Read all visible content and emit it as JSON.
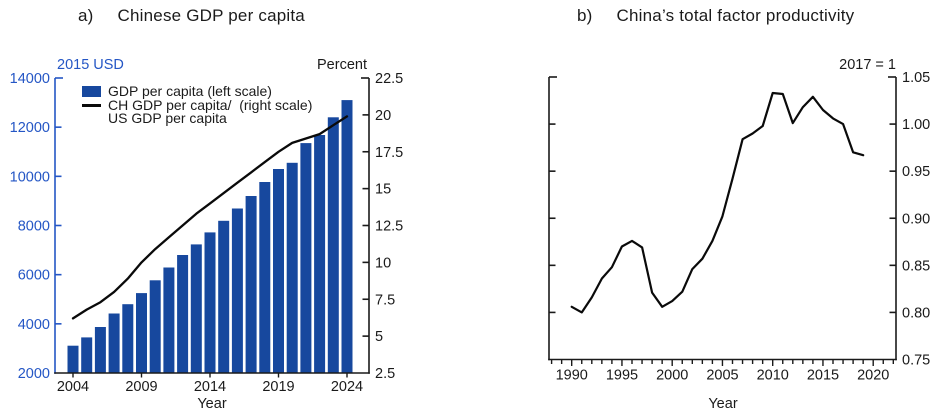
{
  "colors": {
    "bar_blue": "#17489E",
    "axis_blue": "#2456C5",
    "line_black": "#0a0a0a",
    "axis_black": "#1a1a1a",
    "title_color": "#1b1b1b"
  },
  "panels": [
    {
      "label": "a)",
      "title": "Chinese GDP per capita",
      "left_axis_title": "2015 USD",
      "right_axis_title": "Percent",
      "x_axis_title": "Year",
      "legend": [
        {
          "swatch": "bar",
          "label": "GDP per capita (left scale)"
        },
        {
          "swatch": "line",
          "label_line1": "CH GDP per capita/  (right scale)",
          "label_line2": "US GDP per capita"
        }
      ]
    },
    {
      "label": "b)",
      "title": "China’s total factor productivity",
      "right_axis_title": "2017 = 1",
      "x_axis_title": "Year"
    }
  ],
  "chart_data": [
    {
      "type": "bar",
      "title": "Chinese GDP per capita",
      "xlabel": "Year",
      "years": [
        2004,
        2005,
        2006,
        2007,
        2008,
        2009,
        2010,
        2011,
        2012,
        2013,
        2014,
        2015,
        2016,
        2017,
        2018,
        2019,
        2020,
        2021,
        2022,
        2023,
        2024
      ],
      "series": [
        {
          "name": "GDP per capita (left scale)",
          "type": "bar",
          "axis": "left",
          "unit": "2015 USD",
          "values": [
            3110,
            3450,
            3870,
            4420,
            4800,
            5250,
            5770,
            6290,
            6800,
            7230,
            7720,
            8190,
            8690,
            9200,
            9770,
            10300,
            10550,
            11350,
            11680,
            12400,
            13100
          ]
        },
        {
          "name": "CH GDP per capita / US GDP per capita (right scale)",
          "type": "line",
          "axis": "right",
          "unit": "Percent",
          "values": [
            6.2,
            6.8,
            7.3,
            8.0,
            8.9,
            10.0,
            10.9,
            11.7,
            12.5,
            13.3,
            14.0,
            14.7,
            15.4,
            16.1,
            16.8,
            17.5,
            18.1,
            18.4,
            18.7,
            19.3,
            19.9
          ]
        }
      ],
      "left_ylim": [
        2000,
        14000
      ],
      "left_ticks": [
        14000,
        12000,
        10000,
        8000,
        6000,
        4000,
        2000
      ],
      "right_ylim": [
        2.5,
        22.5
      ],
      "right_ticks": [
        "22.5",
        "20",
        "17.5",
        "15",
        "12.5",
        "10",
        "7.5",
        "5",
        "2.5"
      ],
      "x_ticks": [
        2004,
        2009,
        2014,
        2019,
        2024
      ],
      "legend_position": "top-left",
      "grid": false
    },
    {
      "type": "line",
      "title": "China’s total factor productivity",
      "note": "2017 = 1",
      "xlabel": "Year",
      "years": [
        1990,
        1991,
        1992,
        1993,
        1994,
        1995,
        1996,
        1997,
        1998,
        1999,
        2000,
        2001,
        2002,
        2003,
        2004,
        2005,
        2006,
        2007,
        2008,
        2009,
        2010,
        2011,
        2012,
        2013,
        2014,
        2015,
        2016,
        2017,
        2018,
        2019
      ],
      "values": [
        0.806,
        0.8,
        0.816,
        0.836,
        0.848,
        0.87,
        0.876,
        0.869,
        0.821,
        0.806,
        0.812,
        0.822,
        0.846,
        0.857,
        0.876,
        0.902,
        0.942,
        0.984,
        0.99,
        0.998,
        1.033,
        1.032,
        1.001,
        1.018,
        1.029,
        1.015,
        1.006,
        1.0,
        0.97,
        0.967
      ],
      "ylim": [
        0.75,
        1.05
      ],
      "y_ticks": [
        "1.05",
        "1.00",
        "0.95",
        "0.90",
        "0.85",
        "0.80",
        "0.75"
      ],
      "x_ticks": [
        1990,
        1995,
        2000,
        2005,
        2010,
        2015,
        2020
      ],
      "x_minor_tick_start": 1988,
      "x_minor_tick_end": 2022,
      "grid": false
    }
  ]
}
